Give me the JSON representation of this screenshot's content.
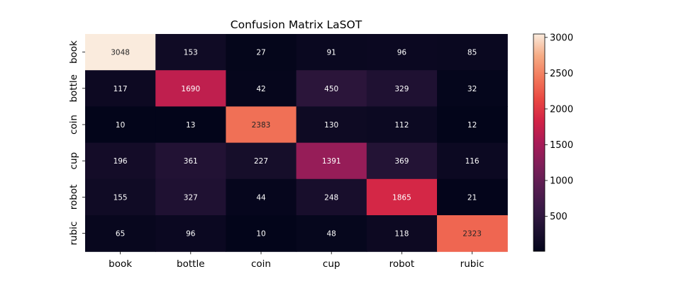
{
  "chart_data": {
    "type": "heatmap",
    "title": "Confusion Matrix LaSOT",
    "xlabel": "",
    "ylabel": "",
    "x_categories": [
      "book",
      "bottle",
      "coin",
      "cup",
      "robot",
      "rubic"
    ],
    "y_categories": [
      "book",
      "bottle",
      "coin",
      "cup",
      "robot",
      "rubic"
    ],
    "matrix": [
      [
        3048,
        153,
        27,
        91,
        96,
        85
      ],
      [
        117,
        1690,
        42,
        450,
        329,
        32
      ],
      [
        10,
        13,
        2383,
        130,
        112,
        12
      ],
      [
        196,
        361,
        227,
        1391,
        369,
        116
      ],
      [
        155,
        327,
        44,
        248,
        1865,
        21
      ],
      [
        65,
        96,
        10,
        48,
        118,
        2323
      ]
    ],
    "colorbar": {
      "ticks": [
        500,
        1000,
        1500,
        2000,
        2500,
        3000
      ],
      "vmin": 10,
      "vmax": 3048,
      "colormap": "rocket"
    },
    "grid": false,
    "legend": "colorbar-right"
  }
}
